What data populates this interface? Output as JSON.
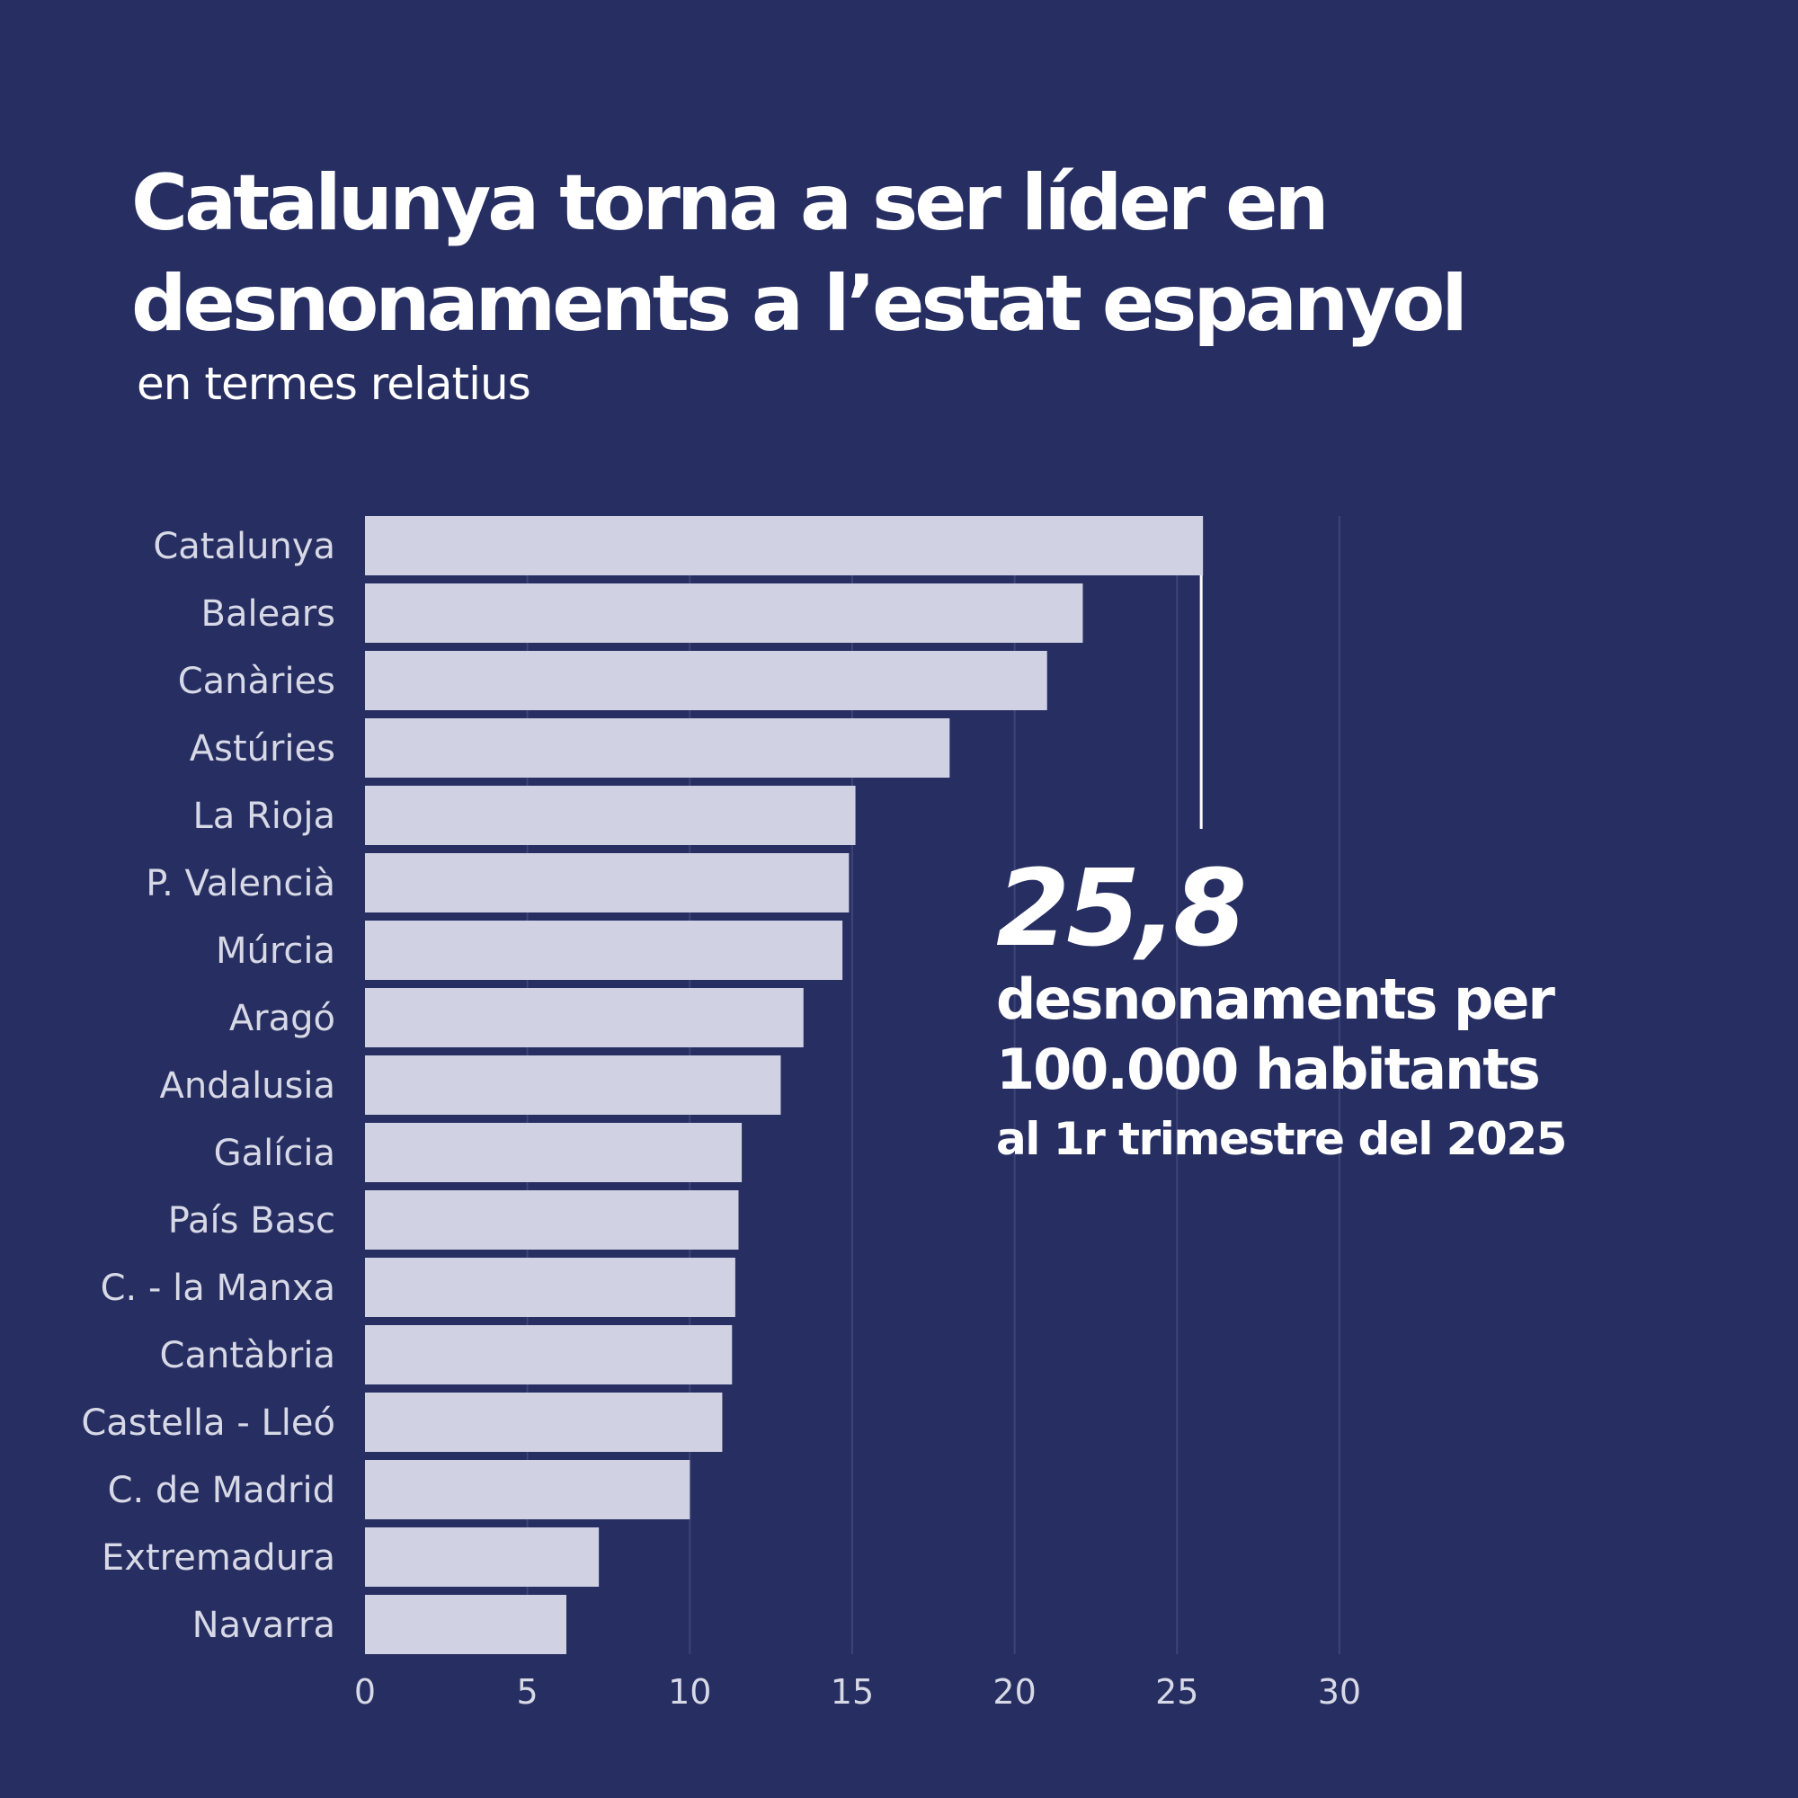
{
  "header": {
    "title": "Catalunya torna a ser líder en desnonaments a l’estat espanyol",
    "subtitle": "en termes relatius"
  },
  "callout": {
    "value": "25,8",
    "unit_line": "desnonaments per 100.000 habitants",
    "period": "al 1r trimestre del 2025"
  },
  "colors": {
    "background": "#262e62",
    "bar": "#d0d1e3",
    "gridline": "#3d4577",
    "text": "#ffffff"
  },
  "chart_data": {
    "type": "bar",
    "orientation": "horizontal",
    "categories": [
      "Catalunya",
      "Balears",
      "Canàries",
      "Astúries",
      "La Rioja",
      "P. Valencià",
      "Múrcia",
      "Aragó",
      "Andalusia",
      "Galícia",
      "País Basc",
      "C. - la Manxa",
      "Cantàbria",
      "Castella - Lleó",
      "C. de Madrid",
      "Extremadura",
      "Navarra"
    ],
    "values": [
      25.8,
      22.1,
      21.0,
      18.0,
      15.1,
      14.9,
      14.7,
      13.5,
      12.8,
      11.6,
      11.5,
      11.4,
      11.3,
      11.0,
      10.0,
      7.2,
      6.2
    ],
    "ticks": [
      0,
      5,
      10,
      15,
      20,
      25,
      30
    ],
    "xlim": [
      0,
      30
    ],
    "grid": true,
    "highlight_category": "Catalunya"
  }
}
